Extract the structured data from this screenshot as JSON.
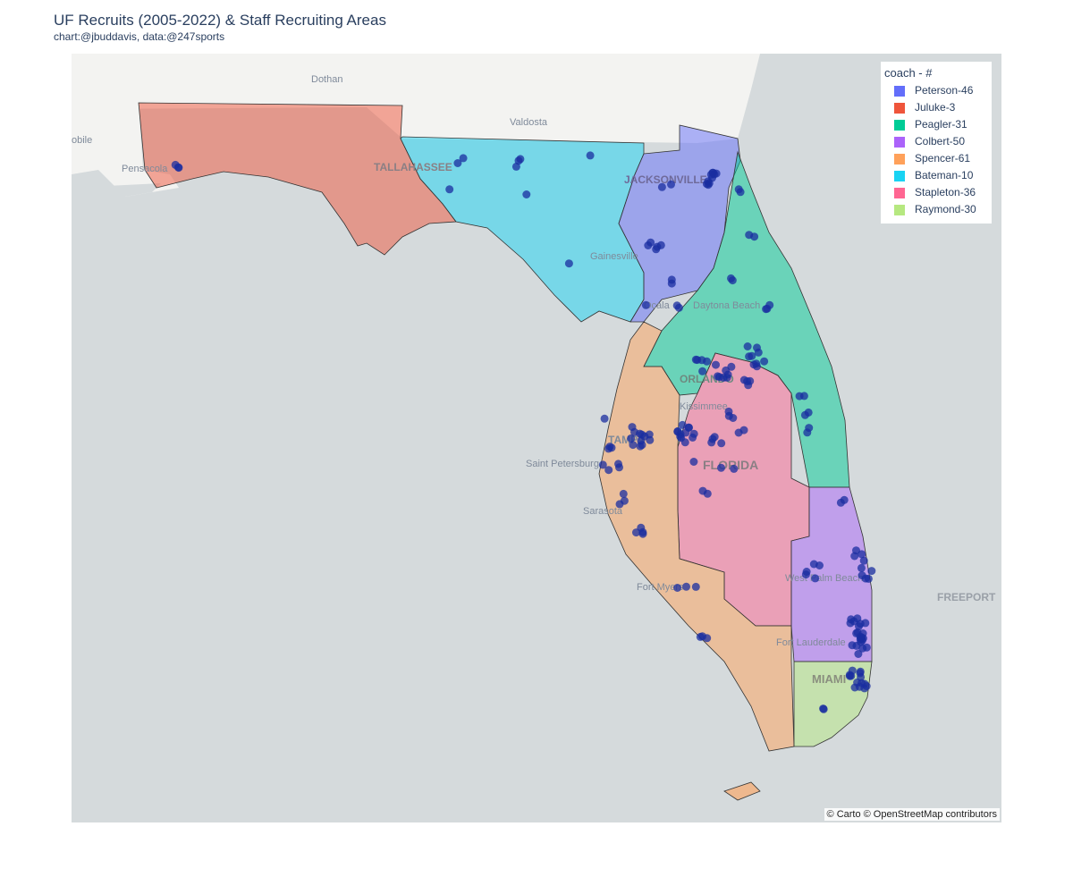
{
  "title": "UF Recruits (2005-2022) & Staff Recruiting Areas",
  "subtitle": "chart:@jbuddavis, data:@247sports",
  "legend": {
    "title": "coach - #",
    "items": [
      {
        "label": "Peterson-46",
        "color": "#636efa"
      },
      {
        "label": "Juluke-3",
        "color": "#ef553b"
      },
      {
        "label": "Peagler-31",
        "color": "#00cc96"
      },
      {
        "label": "Colbert-50",
        "color": "#ab63fa"
      },
      {
        "label": "Spencer-61",
        "color": "#ffa15a"
      },
      {
        "label": "Bateman-10",
        "color": "#19d3f3"
      },
      {
        "label": "Stapleton-36",
        "color": "#ff6692"
      },
      {
        "label": "Raymond-30",
        "color": "#b6e880"
      }
    ]
  },
  "map": {
    "attribution": "© Carto © OpenStreetMap contributors",
    "water_color": "#d5dadc",
    "land_color": "#f2f3f0",
    "recruit_marker_color": "#1a2ea0",
    "basemap_labels": {
      "dothan": "Dothan",
      "valdosta": "Valdosta",
      "mobile": "obile",
      "pensacola": "Pensacola",
      "tallahassee": "TALLAHASSEE",
      "jacksonville": "JACKSONVILLE",
      "gainesville": "Gainesville",
      "ocala": "Ocala",
      "daytona": "Daytona Beach",
      "orlando": "ORLANDO",
      "kissimmee": "Kissimmee",
      "tampa": "TAMPA",
      "st_petersburg": "Saint Petersburg",
      "florida": "FLORIDA",
      "sarasota": "Sarasota",
      "fort_myers": "Fort Myers",
      "west_palm": "West Palm Beach",
      "fort_lauderdale": "Fort Lauderdale",
      "miami": "MIAMI",
      "freeport": "FREEPORT"
    }
  }
}
